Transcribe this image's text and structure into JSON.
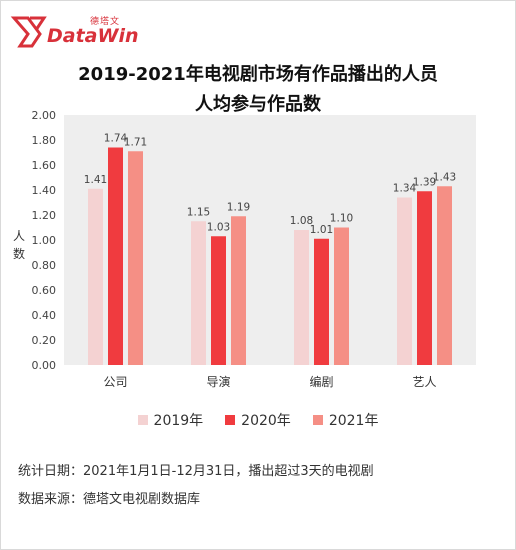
{
  "brand": {
    "cn": "德塔文",
    "en": "DataWin",
    "accent": "#d8313a"
  },
  "title_line1": "2019-2021年电视剧市场有作品播出的人员",
  "title_line2": "人均参与作品数",
  "chart_data": {
    "type": "bar",
    "title": "2019-2021年电视剧市场有作品播出的人员人均参与作品数",
    "categories": [
      "公司",
      "导演",
      "编剧",
      "艺人"
    ],
    "series": [
      {
        "name": "2019年",
        "color": "#f4d2d2",
        "values": [
          1.41,
          1.15,
          1.08,
          1.34
        ]
      },
      {
        "name": "2020年",
        "color": "#f03b3f",
        "values": [
          1.74,
          1.03,
          1.01,
          1.39
        ]
      },
      {
        "name": "2021年",
        "color": "#f58f85",
        "values": [
          1.71,
          1.19,
          1.1,
          1.43
        ]
      }
    ],
    "ylabel": "人数",
    "ylim": [
      0,
      2.0
    ],
    "yticks": [
      "0.00",
      "0.20",
      "0.40",
      "0.60",
      "0.80",
      "1.00",
      "1.20",
      "1.40",
      "1.60",
      "1.80",
      "2.00"
    ],
    "grid": false,
    "legend": "bottom"
  },
  "footnotes": {
    "stat_date": "统计日期：2021年1月1日-12月31日，播出超过3天的电视剧",
    "source": "数据来源：德塔文电视剧数据库"
  }
}
